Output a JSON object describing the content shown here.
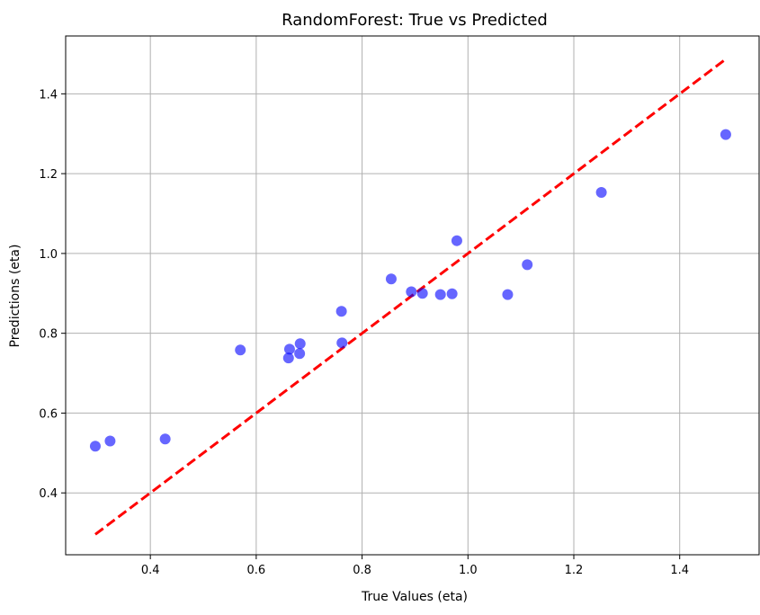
{
  "chart_data": {
    "type": "scatter",
    "title": "RandomForest: True vs Predicted",
    "xlabel": "True Values (eta)",
    "ylabel": "Predictions (eta)",
    "xlim": [
      0.24,
      1.55
    ],
    "ylim": [
      0.245,
      1.545
    ],
    "x_ticks": [
      0.4,
      0.6,
      0.8,
      1.0,
      1.2,
      1.4
    ],
    "x_tick_labels": [
      "0.4",
      "0.6",
      "0.8",
      "1.0",
      "1.2",
      "1.4"
    ],
    "y_ticks": [
      0.4,
      0.6,
      0.8,
      1.0,
      1.2,
      1.4
    ],
    "y_tick_labels": [
      "0.4",
      "0.6",
      "0.8",
      "1.0",
      "1.2",
      "1.4"
    ],
    "grid": true,
    "series": [
      {
        "color": "#0000ff",
        "opacity": 0.6,
        "marker": "circle",
        "x": [
          0.296,
          0.324,
          0.428,
          0.57,
          0.661,
          0.663,
          0.682,
          0.683,
          0.761,
          0.762,
          0.855,
          0.893,
          0.914,
          0.948,
          0.97,
          0.979,
          1.075,
          1.112,
          1.252,
          1.487
        ],
        "y": [
          0.517,
          0.53,
          0.535,
          0.758,
          0.738,
          0.76,
          0.749,
          0.774,
          0.855,
          0.776,
          0.936,
          0.904,
          0.9,
          0.897,
          0.899,
          1.032,
          0.897,
          0.972,
          1.153,
          1.298
        ]
      }
    ],
    "reference_line": {
      "x": [
        0.296,
        1.487
      ],
      "y": [
        0.296,
        1.487
      ],
      "color": "#ff0000",
      "style": "dashed"
    }
  }
}
